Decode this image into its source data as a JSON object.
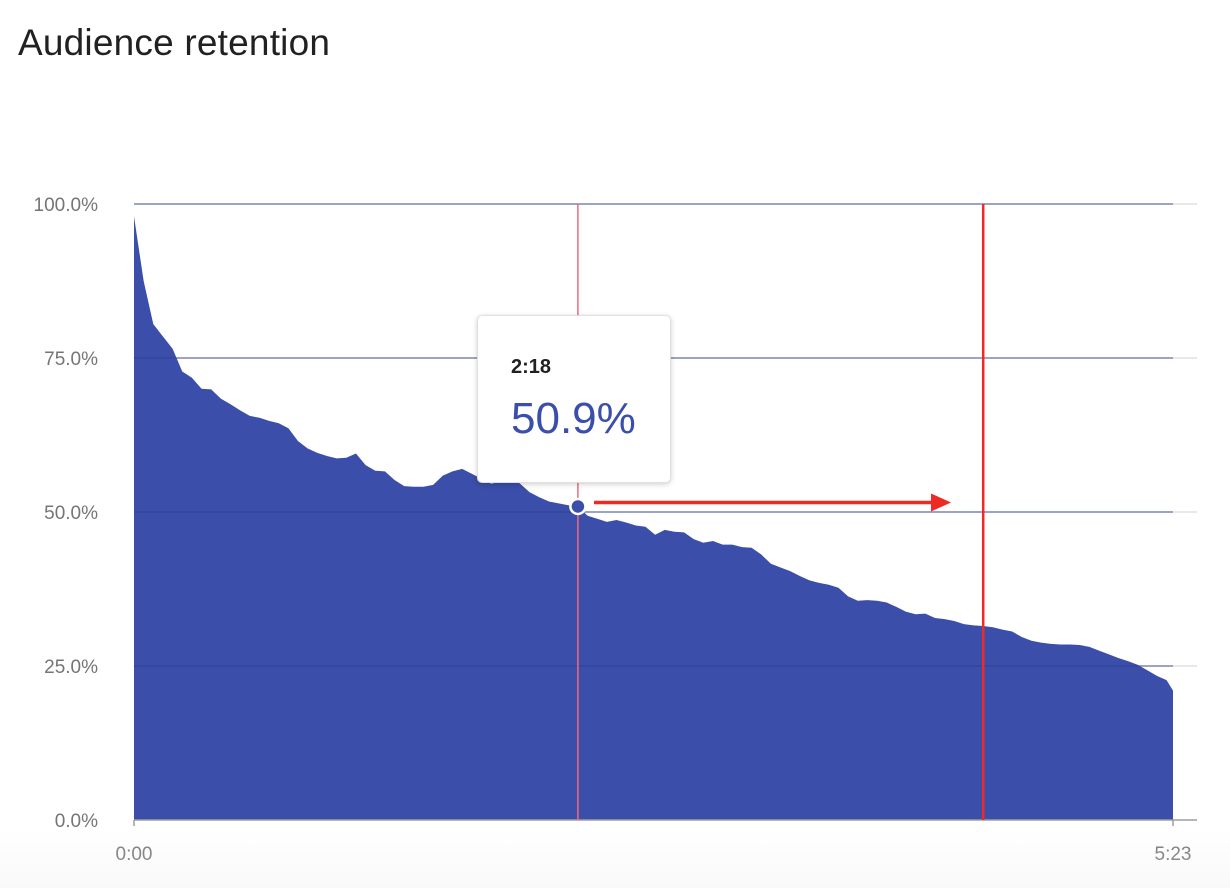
{
  "title": "Audience retention",
  "tooltip": {
    "time": "2:18",
    "value": "50.9%"
  },
  "colors": {
    "area": "#3b4ea9",
    "grid": "#e0e0e0",
    "hover_line": "#f06a7a",
    "annotation": "#ee2a24",
    "marker_fill": "#3b4ea9",
    "marker_stroke": "#ffffff"
  },
  "chart_data": {
    "type": "area",
    "title": "Audience retention",
    "xlabel": "",
    "ylabel": "",
    "x_unit": "seconds",
    "x_tick_labels": [
      "0:00",
      "5:23"
    ],
    "y_tick_labels": [
      "0.0%",
      "25.0%",
      "50.0%",
      "75.0%",
      "100.0%"
    ],
    "xlim": [
      0,
      323
    ],
    "ylim": [
      0,
      100
    ],
    "grid": true,
    "legend": "none",
    "hover": {
      "x": 138,
      "y": 50.9,
      "label": "2:18"
    },
    "annotation": {
      "type": "arrow-to-line",
      "x_from": 143,
      "x_to": 254,
      "y": 50.9,
      "line_x": 264
    },
    "x": [
      0,
      3,
      6,
      9,
      12,
      15,
      18,
      21,
      24,
      27,
      30,
      33,
      36,
      39,
      42,
      45,
      48,
      51,
      54,
      57,
      60,
      63,
      66,
      69,
      72,
      75,
      78,
      81,
      84,
      87,
      90,
      93,
      96,
      99,
      102,
      105,
      108,
      111,
      114,
      117,
      120,
      123,
      126,
      129,
      132,
      135,
      138,
      141,
      144,
      147,
      150,
      153,
      156,
      159,
      162,
      165,
      168,
      171,
      174,
      177,
      180,
      183,
      186,
      189,
      192,
      195,
      198,
      201,
      204,
      207,
      210,
      213,
      216,
      219,
      222,
      225,
      228,
      231,
      234,
      237,
      240,
      243,
      246,
      249,
      252,
      255,
      258,
      261,
      264,
      267,
      270,
      273,
      276,
      279,
      282,
      285,
      288,
      291,
      294,
      297,
      300,
      303,
      306,
      309,
      312,
      315,
      318,
      321,
      323
    ],
    "y": [
      98.0,
      87.5,
      80.5,
      78.5,
      76.5,
      72.8,
      71.8,
      70.0,
      69.9,
      68.4,
      67.5,
      66.5,
      65.6,
      65.3,
      64.8,
      64.4,
      63.6,
      61.5,
      60.3,
      59.6,
      59.1,
      58.7,
      58.8,
      59.5,
      57.6,
      56.7,
      56.6,
      55.2,
      54.2,
      54.1,
      54.1,
      54.4,
      55.9,
      56.6,
      57.0,
      56.2,
      55.4,
      54.6,
      54.9,
      55.7,
      54.6,
      53.2,
      52.4,
      51.7,
      51.4,
      51.1,
      50.9,
      49.4,
      48.9,
      48.4,
      48.7,
      48.3,
      47.8,
      47.6,
      46.3,
      47.1,
      46.8,
      46.7,
      45.6,
      45.0,
      45.3,
      44.7,
      44.7,
      44.3,
      44.2,
      43.1,
      41.6,
      41.0,
      40.4,
      39.6,
      38.9,
      38.5,
      38.2,
      37.7,
      36.3,
      35.6,
      35.7,
      35.6,
      35.3,
      34.6,
      33.8,
      33.4,
      33.5,
      32.8,
      32.6,
      32.3,
      31.8,
      31.6,
      31.5,
      31.3,
      30.9,
      30.6,
      29.7,
      29.1,
      28.8,
      28.6,
      28.5,
      28.5,
      28.4,
      28.1,
      27.5,
      26.9,
      26.3,
      25.8,
      25.2,
      24.3,
      23.4,
      22.7,
      21.0
    ]
  }
}
